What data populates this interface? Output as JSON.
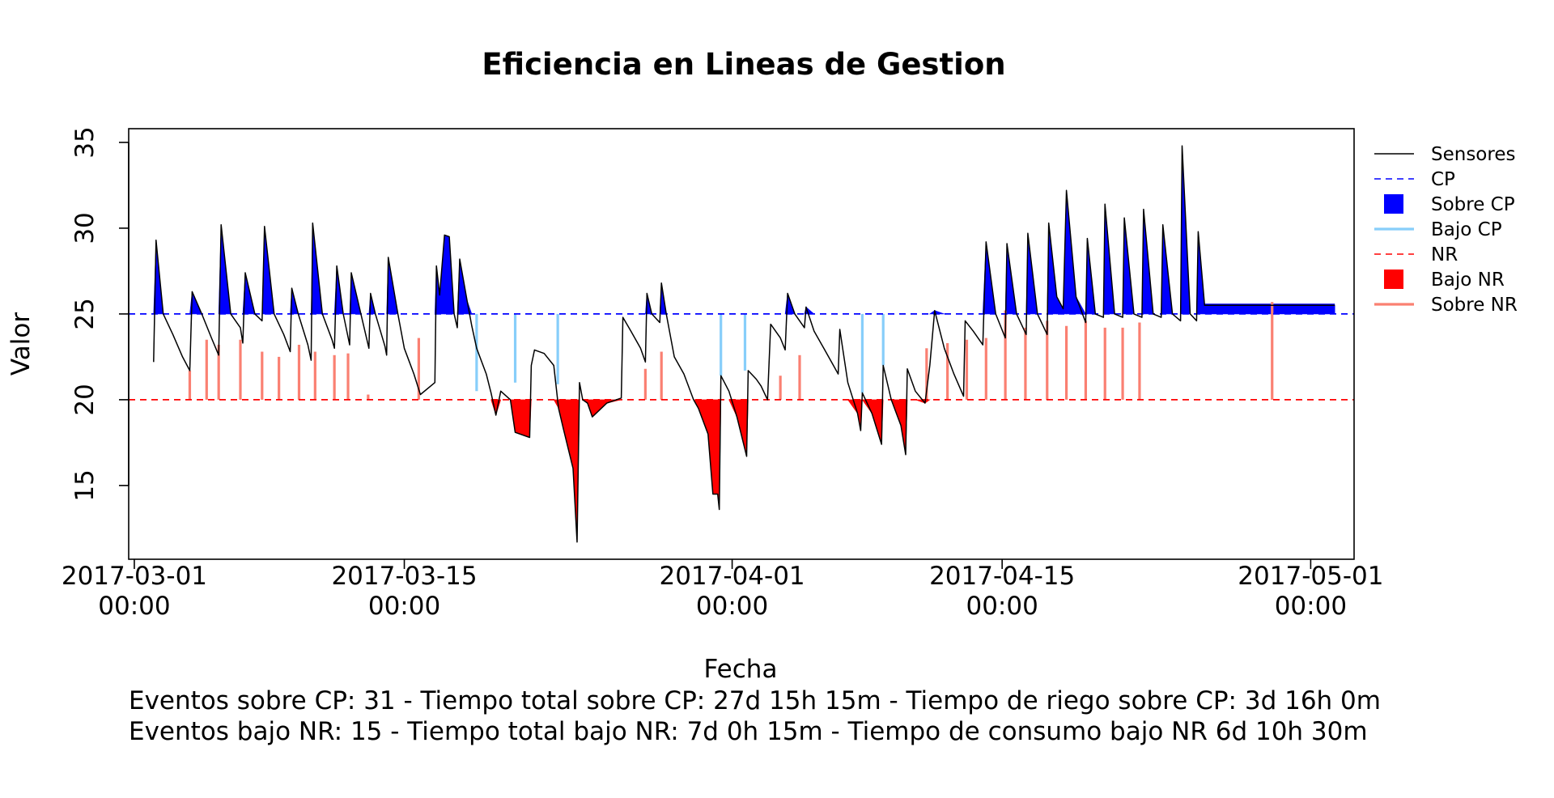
{
  "chart_data": {
    "type": "line",
    "title": "Eficiencia en Lineas de Gestion",
    "xlabel": "Fecha",
    "ylabel": "Valor",
    "ylim": [
      10.7,
      35.8
    ],
    "y_ticks": [
      "15",
      "20",
      "25",
      "30",
      "35"
    ],
    "x_ticks": [
      {
        "line1": "2017-03-01",
        "line2": "00:00"
      },
      {
        "line1": "2017-03-15",
        "line2": "00:00"
      },
      {
        "line1": "2017-04-01",
        "line2": "00:00"
      },
      {
        "line1": "2017-04-15",
        "line2": "00:00"
      },
      {
        "line1": "2017-05-01",
        "line2": "00:00"
      }
    ],
    "cp_value": 25,
    "nr_value": 20,
    "colors": {
      "sensores": "#000000",
      "cp": "#0000ff",
      "sobre_cp": "#0000ff",
      "bajo_cp": "#87cefa",
      "nr": "#ff0000",
      "bajo_nr": "#ff0000",
      "sobre_nr": "#fa8072"
    },
    "legend": [
      {
        "label": "Sensores",
        "kind": "line",
        "color": "#000000",
        "dash": false
      },
      {
        "label": "CP",
        "kind": "line",
        "color": "#0000ff",
        "dash": true
      },
      {
        "label": "Sobre CP",
        "kind": "box",
        "color": "#0000ff"
      },
      {
        "label": "Bajo CP",
        "kind": "line",
        "color": "#87cefa",
        "dash": false
      },
      {
        "label": "NR",
        "kind": "line",
        "color": "#ff0000",
        "dash": true
      },
      {
        "label": "Bajo NR",
        "kind": "box",
        "color": "#ff0000"
      },
      {
        "label": "Sobre NR",
        "kind": "line",
        "color": "#fa8072",
        "dash": false
      }
    ],
    "legend_position": "right",
    "sensor_series": [
      [
        "2017-03-02 00:00",
        22.2
      ],
      [
        "2017-03-02 03:00",
        29.3
      ],
      [
        "2017-03-02 12:00",
        25.0
      ],
      [
        "2017-03-03 00:00",
        23.8
      ],
      [
        "2017-03-03 12:00",
        22.5
      ],
      [
        "2017-03-03 21:00",
        21.7
      ],
      [
        "2017-03-04 00:00",
        26.3
      ],
      [
        "2017-03-04 12:00",
        25.0
      ],
      [
        "2017-03-05 00:00",
        23.6
      ],
      [
        "2017-03-05 09:00",
        22.6
      ],
      [
        "2017-03-05 12:00",
        30.2
      ],
      [
        "2017-03-06 00:00",
        25.0
      ],
      [
        "2017-03-06 12:00",
        24.2
      ],
      [
        "2017-03-06 15:00",
        23.3
      ],
      [
        "2017-03-06 18:00",
        27.4
      ],
      [
        "2017-03-07 06:00",
        25.0
      ],
      [
        "2017-03-07 15:00",
        24.6
      ],
      [
        "2017-03-07 18:00",
        30.1
      ],
      [
        "2017-03-08 06:00",
        25.0
      ],
      [
        "2017-03-08 18:00",
        23.8
      ],
      [
        "2017-03-09 02:00",
        22.8
      ],
      [
        "2017-03-09 04:00",
        26.5
      ],
      [
        "2017-03-09 12:00",
        25.0
      ],
      [
        "2017-03-10 00:00",
        23.2
      ],
      [
        "2017-03-10 04:00",
        22.3
      ],
      [
        "2017-03-10 06:00",
        30.3
      ],
      [
        "2017-03-10 18:00",
        25.0
      ],
      [
        "2017-03-11 06:00",
        23.5
      ],
      [
        "2017-03-11 09:00",
        23.0
      ],
      [
        "2017-03-11 12:00",
        27.8
      ],
      [
        "2017-03-11 20:00",
        25.0
      ],
      [
        "2017-03-12 04:00",
        23.2
      ],
      [
        "2017-03-12 06:00",
        27.4
      ],
      [
        "2017-03-12 18:00",
        25.0
      ],
      [
        "2017-03-13 04:00",
        23.0
      ],
      [
        "2017-03-13 06:00",
        26.2
      ],
      [
        "2017-03-13 12:00",
        25.0
      ],
      [
        "2017-03-14 00:00",
        23.1
      ],
      [
        "2017-03-14 02:00",
        22.6
      ],
      [
        "2017-03-14 04:00",
        28.3
      ],
      [
        "2017-03-14 16:00",
        25.0
      ],
      [
        "2017-03-15 00:00",
        23.0
      ],
      [
        "2017-03-15 12:00",
        21.5
      ],
      [
        "2017-03-15 20:00",
        20.3
      ],
      [
        "2017-03-16 14:00",
        21.0
      ],
      [
        "2017-03-16 16:00",
        27.8
      ],
      [
        "2017-03-16 20:00",
        26.1
      ],
      [
        "2017-03-17 02:00",
        29.6
      ],
      [
        "2017-03-17 08:00",
        29.5
      ],
      [
        "2017-03-17 14:00",
        25.0
      ],
      [
        "2017-03-17 18:00",
        24.2
      ],
      [
        "2017-03-17 21:00",
        28.2
      ],
      [
        "2017-03-18 06:00",
        25.8
      ],
      [
        "2017-03-18 12:00",
        24.3
      ],
      [
        "2017-03-18 18:00",
        23.0
      ],
      [
        "2017-03-19 06:00",
        21.5
      ],
      [
        "2017-03-19 12:00",
        20.4
      ],
      [
        "2017-03-19 18:00",
        19.1
      ],
      [
        "2017-03-20 00:00",
        20.5
      ],
      [
        "2017-03-20 12:00",
        20.0
      ],
      [
        "2017-03-20 18:00",
        18.1
      ],
      [
        "2017-03-21 12:00",
        17.8
      ],
      [
        "2017-03-21 14:00",
        22.0
      ],
      [
        "2017-03-21 18:00",
        22.9
      ],
      [
        "2017-03-22 06:00",
        22.7
      ],
      [
        "2017-03-22 18:00",
        22.0
      ],
      [
        "2017-03-23 00:00",
        19.5
      ],
      [
        "2017-03-23 06:00",
        18.3
      ],
      [
        "2017-03-23 18:00",
        16.0
      ],
      [
        "2017-03-23 23:00",
        11.7
      ],
      [
        "2017-03-24 02:00",
        21.0
      ],
      [
        "2017-03-24 06:00",
        20.0
      ],
      [
        "2017-03-24 12:00",
        19.8
      ],
      [
        "2017-03-24 18:00",
        19.0
      ],
      [
        "2017-03-25 12:00",
        19.8
      ],
      [
        "2017-03-26 06:00",
        20.1
      ],
      [
        "2017-03-26 08:00",
        24.8
      ],
      [
        "2017-03-26 18:00",
        24.0
      ],
      [
        "2017-03-27 06:00",
        23.0
      ],
      [
        "2017-03-27 12:00",
        22.2
      ],
      [
        "2017-03-27 14:00",
        26.2
      ],
      [
        "2017-03-27 20:00",
        25.0
      ],
      [
        "2017-03-28 06:00",
        24.5
      ],
      [
        "2017-03-28 08:00",
        26.8
      ],
      [
        "2017-03-28 14:00",
        25.0
      ],
      [
        "2017-03-29 00:00",
        22.5
      ],
      [
        "2017-03-29 12:00",
        21.5
      ],
      [
        "2017-03-30 00:00",
        20.0
      ],
      [
        "2017-03-30 06:00",
        19.5
      ],
      [
        "2017-03-30 18:00",
        18.0
      ],
      [
        "2017-03-31 00:00",
        14.5
      ],
      [
        "2017-03-31 06:00",
        14.5
      ],
      [
        "2017-03-31 08:00",
        13.6
      ],
      [
        "2017-03-31 10:00",
        21.4
      ],
      [
        "2017-03-31 20:00",
        20.5
      ],
      [
        "2017-04-01 06:00",
        19.0
      ],
      [
        "2017-04-01 18:00",
        16.7
      ],
      [
        "2017-04-01 20:00",
        21.7
      ],
      [
        "2017-04-02 06:00",
        21.2
      ],
      [
        "2017-04-02 12:00",
        20.8
      ],
      [
        "2017-04-02 20:00",
        20.0
      ],
      [
        "2017-04-03 00:00",
        24.4
      ],
      [
        "2017-04-03 12:00",
        23.6
      ],
      [
        "2017-04-03 18:00",
        22.9
      ],
      [
        "2017-04-03 21:00",
        26.2
      ],
      [
        "2017-04-04 06:00",
        25.0
      ],
      [
        "2017-04-04 18:00",
        24.2
      ],
      [
        "2017-04-04 20:00",
        25.4
      ],
      [
        "2017-04-05 06:00",
        24.0
      ],
      [
        "2017-04-05 18:00",
        23.0
      ],
      [
        "2017-04-06 06:00",
        22.0
      ],
      [
        "2017-04-06 12:00",
        21.5
      ],
      [
        "2017-04-06 14:00",
        24.1
      ],
      [
        "2017-04-07 00:00",
        21.0
      ],
      [
        "2017-04-07 12:00",
        19.2
      ],
      [
        "2017-04-07 16:00",
        18.2
      ],
      [
        "2017-04-07 18:00",
        20.4
      ],
      [
        "2017-04-08 06:00",
        19.2
      ],
      [
        "2017-04-08 18:00",
        17.4
      ],
      [
        "2017-04-08 20:00",
        22.0
      ],
      [
        "2017-04-09 06:00",
        20.0
      ],
      [
        "2017-04-09 18:00",
        18.5
      ],
      [
        "2017-04-10 00:00",
        16.8
      ],
      [
        "2017-04-10 02:00",
        21.8
      ],
      [
        "2017-04-10 12:00",
        20.5
      ],
      [
        "2017-04-11 00:00",
        19.8
      ],
      [
        "2017-04-11 06:00",
        22.0
      ],
      [
        "2017-04-11 12:00",
        25.2
      ],
      [
        "2017-04-12 00:00",
        23.0
      ],
      [
        "2017-04-12 12:00",
        21.5
      ],
      [
        "2017-04-13 00:00",
        20.2
      ],
      [
        "2017-04-13 02:00",
        24.6
      ],
      [
        "2017-04-13 12:00",
        24.0
      ],
      [
        "2017-04-14 00:00",
        23.2
      ],
      [
        "2017-04-14 04:00",
        29.2
      ],
      [
        "2017-04-14 16:00",
        25.0
      ],
      [
        "2017-04-15 04:00",
        23.6
      ],
      [
        "2017-04-15 06:00",
        29.1
      ],
      [
        "2017-04-15 18:00",
        25.0
      ],
      [
        "2017-04-16 06:00",
        23.8
      ],
      [
        "2017-04-16 08:00",
        29.7
      ],
      [
        "2017-04-16 20:00",
        25.0
      ],
      [
        "2017-04-17 08:00",
        23.8
      ],
      [
        "2017-04-17 10:00",
        30.3
      ],
      [
        "2017-04-17 20:00",
        26.0
      ],
      [
        "2017-04-18 04:00",
        25.3
      ],
      [
        "2017-04-18 08:00",
        32.2
      ],
      [
        "2017-04-18 20:00",
        26.0
      ],
      [
        "2017-04-19 08:00",
        24.5
      ],
      [
        "2017-04-19 10:00",
        29.4
      ],
      [
        "2017-04-19 20:00",
        25.0
      ],
      [
        "2017-04-20 06:00",
        24.8
      ],
      [
        "2017-04-20 08:00",
        31.4
      ],
      [
        "2017-04-20 20:00",
        25.0
      ],
      [
        "2017-04-21 06:00",
        24.8
      ],
      [
        "2017-04-21 08:00",
        30.6
      ],
      [
        "2017-04-21 20:00",
        25.0
      ],
      [
        "2017-04-22 06:00",
        24.8
      ],
      [
        "2017-04-22 08:00",
        31.1
      ],
      [
        "2017-04-22 20:00",
        25.0
      ],
      [
        "2017-04-23 06:00",
        24.8
      ],
      [
        "2017-04-23 08:00",
        30.2
      ],
      [
        "2017-04-23 20:00",
        25.0
      ],
      [
        "2017-04-24 06:00",
        24.6
      ],
      [
        "2017-04-24 08:00",
        34.8
      ],
      [
        "2017-04-24 18:00",
        25.0
      ],
      [
        "2017-04-25 02:00",
        24.6
      ],
      [
        "2017-04-25 04:00",
        29.8
      ],
      [
        "2017-04-25 12:00",
        25.5
      ],
      [
        "2017-05-02 06:00",
        25.5
      ]
    ],
    "sobre_cp_fill": [
      [
        "2017-04-25 12:00",
        "2017-05-02 06:00",
        25.0,
        25.6
      ]
    ],
    "sobre_nr_markers": [
      {
        "date": "2017-03-03 21:00",
        "value": 21.7
      },
      {
        "date": "2017-03-04 18:00",
        "value": 23.5
      },
      {
        "date": "2017-03-05 09:00",
        "value": 23.2
      },
      {
        "date": "2017-03-06 12:00",
        "value": 23.5
      },
      {
        "date": "2017-03-07 15:00",
        "value": 22.8
      },
      {
        "date": "2017-03-08 12:00",
        "value": 22.5
      },
      {
        "date": "2017-03-09 13:00",
        "value": 23.2
      },
      {
        "date": "2017-03-10 09:00",
        "value": 22.8
      },
      {
        "date": "2017-03-11 09:00",
        "value": 22.6
      },
      {
        "date": "2017-03-12 02:00",
        "value": 22.7
      },
      {
        "date": "2017-03-13 03:00",
        "value": 20.3
      },
      {
        "date": "2017-03-15 18:00",
        "value": 23.6
      },
      {
        "date": "2017-03-27 12:00",
        "value": 21.8
      },
      {
        "date": "2017-03-28 08:00",
        "value": 22.8
      },
      {
        "date": "2017-04-03 12:00",
        "value": 21.4
      },
      {
        "date": "2017-04-04 12:00",
        "value": 22.6
      },
      {
        "date": "2017-04-11 02:00",
        "value": 23.0
      },
      {
        "date": "2017-04-12 04:00",
        "value": 23.3
      },
      {
        "date": "2017-04-13 04:00",
        "value": 23.5
      },
      {
        "date": "2017-04-14 04:00",
        "value": 23.6
      },
      {
        "date": "2017-04-15 04:00",
        "value": 25.2
      },
      {
        "date": "2017-04-16 05:00",
        "value": 24.2
      },
      {
        "date": "2017-04-17 08:00",
        "value": 24.6
      },
      {
        "date": "2017-04-18 08:00",
        "value": 24.3
      },
      {
        "date": "2017-04-19 08:00",
        "value": 24.6
      },
      {
        "date": "2017-04-20 08:00",
        "value": 24.2
      },
      {
        "date": "2017-04-21 06:00",
        "value": 24.2
      },
      {
        "date": "2017-04-22 03:00",
        "value": 24.5
      },
      {
        "date": "2017-04-29 00:00",
        "value": 25.7
      }
    ],
    "bajo_cp_markers": [
      {
        "date": "2017-03-18 18:00",
        "value": 20.5
      },
      {
        "date": "2017-03-20 18:00",
        "value": 21.0
      },
      {
        "date": "2017-03-22 23:00",
        "value": 20.9
      },
      {
        "date": "2017-03-31 10:00",
        "value": 21.4
      },
      {
        "date": "2017-04-01 16:00",
        "value": 21.7
      },
      {
        "date": "2017-04-07 18:00",
        "value": 20.4
      },
      {
        "date": "2017-04-08 20:00",
        "value": 22.0
      }
    ]
  },
  "footer": {
    "line1": "Eventos sobre CP: 31 - Tiempo total sobre CP: 27d 15h 15m  - Tiempo de riego sobre CP: 3d 16h 0m",
    "line2": "Eventos bajo NR: 15 - Tiempo total bajo NR: 7d 0h 15m  - Tiempo de consumo bajo NR 6d 10h 30m"
  }
}
